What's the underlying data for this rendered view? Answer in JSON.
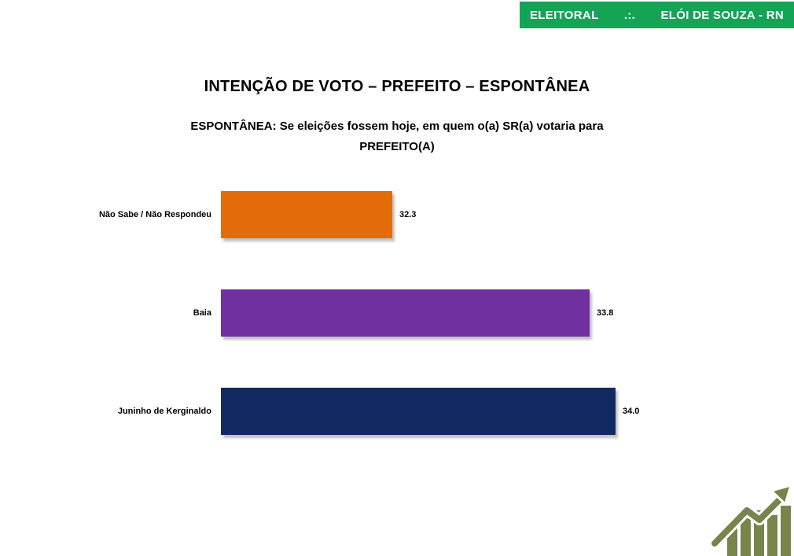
{
  "header": {
    "category": "ELEITORAL",
    "separator": ".:.",
    "location": "ELÓI DE SOUZA - RN",
    "background_color": "#13A456",
    "text_color": "#FFFFFF"
  },
  "title": "INTENÇÃO DE VOTO – PREFEITO – ESPONTÂNEA",
  "subtitle": "ESPONTÂNEA: Se eleições fossem hoje, em quem o(a) SR(a) votaria para PREFEITO(A)",
  "chart_data": {
    "type": "bar",
    "orientation": "horizontal",
    "title": "INTENÇÃO DE VOTO – PREFEITO – ESPONTÂNEA",
    "subtitle": "ESPONTÂNEA: Se eleições fossem hoje, em quem o(a) SR(a) votaria para PREFEITO(A)",
    "categories": [
      "Não Sabe / Não Respondeu",
      "Baia",
      "Juninho de Kerginaldo"
    ],
    "values": [
      32.3,
      33.8,
      34.0
    ],
    "value_labels": [
      "32.3",
      "33.8",
      "34.0"
    ],
    "colors": [
      "#E36C0A",
      "#7030A0",
      "#122A62"
    ],
    "xlim": [
      31,
      34.5
    ],
    "xlabel": "",
    "ylabel": "",
    "grid": false,
    "legend": false,
    "data_labels_position": "outside-end"
  },
  "logo": {
    "icon": "rising-bar-chart-with-arrow",
    "color": "#77854B"
  }
}
